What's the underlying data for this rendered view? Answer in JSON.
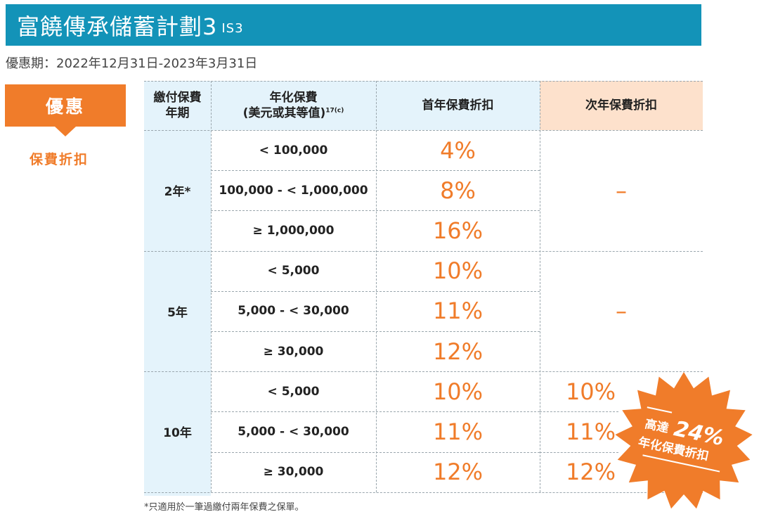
{
  "header": {
    "title": "富饒傳承儲蓄計劃3",
    "code": "IS3"
  },
  "promo_period": "優惠期：2022年12月31日-2023年3月31日",
  "offer": {
    "tag": "優惠",
    "subtitle": "保費折扣"
  },
  "table": {
    "headers": {
      "term": "繳付保費\n年期",
      "premium": "年化保費\n(美元或其等值)",
      "premium_sup": "17(c)",
      "first_year": "首年保費折扣",
      "second_year": "次年保費折扣"
    },
    "groups": [
      {
        "term": "2年*",
        "second_year": "–",
        "rows": [
          {
            "premium": "< 100,000",
            "first": "4%"
          },
          {
            "premium": "100,000 - < 1,000,000",
            "first": "8%"
          },
          {
            "premium": "≥ 1,000,000",
            "first": "16%"
          }
        ]
      },
      {
        "term": "5年",
        "second_year": "–",
        "rows": [
          {
            "premium": "< 5,000",
            "first": "10%"
          },
          {
            "premium": "5,000 - < 30,000",
            "first": "11%"
          },
          {
            "premium": "≥ 30,000",
            "first": "12%"
          }
        ]
      },
      {
        "term": "10年",
        "rows": [
          {
            "premium": "< 5,000",
            "first": "10%",
            "second": "10%"
          },
          {
            "premium": "5,000 - < 30,000",
            "first": "11%",
            "second": "11%"
          },
          {
            "premium": "≥ 30,000",
            "first": "12%",
            "second": "12%"
          }
        ]
      }
    ]
  },
  "badge": {
    "line1_prefix": "高達",
    "line1_value": "24%",
    "line2": "年化保費折扣",
    "color": "#f07c2a"
  },
  "footnote": "*只適用於一筆過繳付兩年保費之保單。",
  "colors": {
    "title_bar": "#1393b8",
    "accent": "#f07c2a",
    "col_blue": "#e4f3fb",
    "col_peach": "#fde1cc"
  }
}
